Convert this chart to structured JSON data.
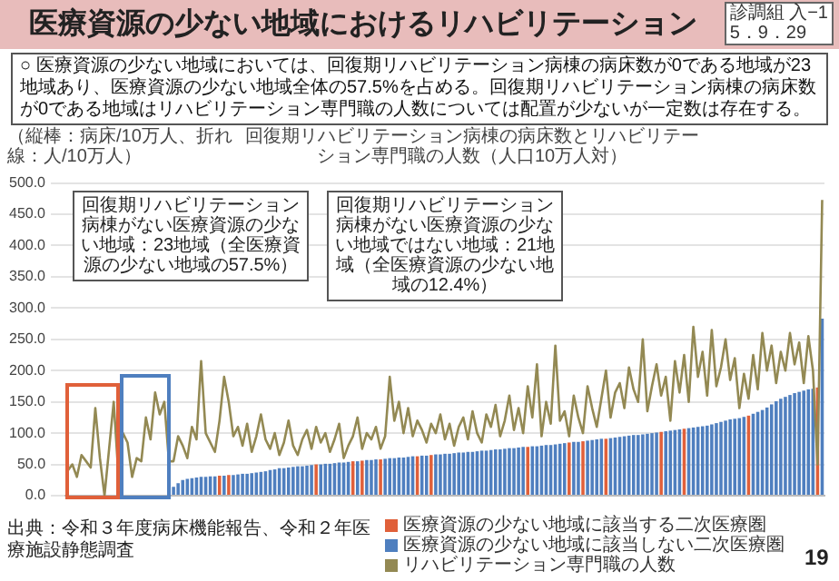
{
  "chart_data": {
    "type": "bar",
    "title": "医療資源の少ない地域におけるリハビリテーション",
    "subtitle": "○ 医療資源の少ない地域においては、回復期リハビリテーション病棟の病床数が0である地域が23地域あり、医療資源の少ない地域全体の57.5%を占める。回復期リハビリテーション病棟の病床数が0である地域はリハビリテーション専門職の人数については配置が少ないが一定数は存在する。",
    "annotations": [
      "診調組 入−1\n5．9．29",
      "（縦棒：病床/10万人、折れ線：人/10万人）",
      "回復期リハビリテーション病棟の病床数とリハビリテーション専門職の人数（人口10万人対）",
      "回復期リハビリテーション病棟がない医療資源の少ない地域：23地域（全医療資源の少ない地域の57.5%）",
      "回復期リハビリテーション病棟がない医療資源の少ない地域ではない地域：21地域（全医療資源の少ない地域の12.4%）",
      "出典：令和３年度病床機能報告、令和２年医療施設静態調査",
      "19"
    ],
    "categories": [
      null,
      null,
      null,
      null,
      null,
      null,
      null,
      null,
      null,
      null,
      null,
      null,
      null,
      null,
      null,
      null,
      null,
      null,
      null,
      null,
      null,
      null,
      null,
      null,
      null,
      null,
      null,
      null,
      null,
      null,
      null,
      null,
      null,
      null,
      null,
      null,
      null,
      null,
      null,
      null,
      null,
      null,
      null,
      null,
      null,
      null,
      null,
      null,
      null,
      null,
      null,
      null,
      null,
      null,
      null,
      null,
      null,
      null,
      null,
      null,
      null,
      null,
      null,
      null,
      null,
      null,
      null,
      null,
      null,
      null,
      null,
      null,
      null,
      null,
      null,
      null,
      null,
      null,
      null,
      null,
      null,
      null,
      null,
      null,
      null,
      null,
      null,
      null,
      null,
      null,
      null,
      null,
      null,
      null,
      null,
      null,
      null,
      null,
      null,
      null,
      null,
      null,
      null,
      null,
      null,
      null,
      null,
      null,
      null,
      null,
      null,
      null,
      null,
      null,
      null,
      null,
      null,
      null,
      null,
      null,
      null,
      null,
      null,
      null,
      null,
      null,
      null,
      null,
      null,
      null,
      null,
      null,
      null,
      null,
      null,
      null,
      null,
      null,
      null,
      null,
      null,
      null,
      null,
      null,
      null,
      null,
      null,
      null,
      null,
      null,
      null,
      null,
      null,
      null,
      null,
      null,
      null,
      null,
      null,
      null,
      null,
      null,
      null,
      null,
      null
    ],
    "series": [
      {
        "name": "医療資源の少ない地域に該当する二次医療圏",
        "color": "#e0603a",
        "values": [
          0,
          0,
          0,
          0,
          0,
          0,
          0,
          0,
          0,
          0,
          0,
          0,
          null,
          null,
          null,
          null,
          null,
          null,
          null,
          null,
          null,
          null,
          null,
          null,
          null,
          null,
          null,
          null,
          null,
          null,
          null,
          null,
          null,
          32,
          null,
          33,
          null,
          null,
          null,
          null,
          null,
          null,
          null,
          null,
          null,
          null,
          null,
          null,
          null,
          null,
          null,
          null,
          null,
          null,
          50,
          null,
          null,
          null,
          null,
          null,
          null,
          null,
          55,
          null,
          56,
          null,
          null,
          null,
          58,
          null,
          null,
          null,
          null,
          null,
          null,
          null,
          63,
          null,
          null,
          65,
          null,
          null,
          null,
          null,
          null,
          null,
          null,
          null,
          null,
          null,
          null,
          null,
          null,
          null,
          null,
          null,
          null,
          null,
          null,
          null,
          78,
          null,
          null,
          null,
          null,
          null,
          null,
          null,
          null,
          85,
          null,
          null,
          87,
          null,
          null,
          null,
          null,
          91,
          null,
          null,
          null,
          null,
          null,
          null,
          null,
          null,
          null,
          null,
          null,
          102,
          null,
          null,
          null,
          null,
          107,
          null,
          null,
          null,
          null,
          null,
          null,
          null,
          null,
          null,
          null,
          null,
          null,
          null,
          128,
          null,
          null,
          null,
          null,
          null,
          null,
          null,
          null,
          null,
          null,
          null,
          null,
          null,
          null,
          173,
          null
        ]
      },
      {
        "name": "医療資源の少ない地域に該当しない二次医療圏",
        "color": "#4f7fbf",
        "values": [
          null,
          null,
          null,
          null,
          null,
          null,
          null,
          null,
          null,
          null,
          null,
          null,
          0,
          0,
          0,
          0,
          0,
          0,
          0,
          0,
          0,
          0,
          0,
          14,
          20,
          25,
          27,
          28,
          29,
          30,
          30,
          31,
          31,
          null,
          32,
          null,
          33,
          34,
          35,
          35,
          36,
          37,
          38,
          39,
          41,
          42,
          44,
          44,
          45,
          46,
          47,
          47,
          48,
          49,
          null,
          50,
          51,
          51,
          52,
          53,
          53,
          54,
          null,
          55,
          null,
          57,
          57,
          58,
          null,
          59,
          60,
          60,
          61,
          61,
          62,
          63,
          null,
          64,
          64,
          null,
          66,
          66,
          67,
          67,
          68,
          69,
          69,
          70,
          70,
          71,
          72,
          72,
          73,
          74,
          74,
          75,
          76,
          76,
          77,
          78,
          null,
          79,
          79,
          80,
          81,
          81,
          82,
          83,
          84,
          null,
          86,
          86,
          null,
          88,
          89,
          90,
          91,
          null,
          92,
          93,
          94,
          95,
          96,
          97,
          97,
          98,
          99,
          100,
          101,
          null,
          103,
          104,
          105,
          106,
          null,
          108,
          109,
          110,
          111,
          112,
          114,
          116,
          118,
          120,
          122,
          123,
          124,
          126,
          null,
          131,
          134,
          137,
          141,
          146,
          151,
          155,
          158,
          161,
          164,
          166,
          168,
          170,
          171,
          null,
          283
        ]
      },
      {
        "name": "リハビリテーション専門職の人数",
        "type": "line",
        "color": "#938953",
        "values": [
          40,
          50,
          30,
          65,
          55,
          45,
          140,
          60,
          0,
          75,
          150,
          35,
          100,
          85,
          30,
          60,
          55,
          125,
          90,
          165,
          130,
          150,
          55,
          55,
          95,
          80,
          60,
          110,
          90,
          215,
          100,
          85,
          70,
          120,
          190,
          150,
          95,
          110,
          80,
          115,
          70,
          95,
          130,
          90,
          75,
          100,
          65,
          85,
          120,
          80,
          65,
          90,
          105,
          75,
          110,
          85,
          100,
          70,
          90,
          115,
          60,
          80,
          95,
          125,
          75,
          100,
          90,
          110,
          75,
          95,
          190,
          120,
          150,
          100,
          140,
          95,
          120,
          105,
          85,
          115,
          100,
          130,
          90,
          115,
          80,
          110,
          125,
          90,
          135,
          100,
          85,
          130,
          110,
          145,
          95,
          120,
          160,
          105,
          140,
          100,
          175,
          125,
          210,
          95,
          150,
          115,
          240,
          120,
          135,
          95,
          160,
          125,
          100,
          175,
          140,
          110,
          155,
          200,
          125,
          165,
          180,
          140,
          205,
          170,
          150,
          250,
          135,
          175,
          210,
          160,
          190,
          120,
          215,
          165,
          225,
          150,
          270,
          190,
          230,
          160,
          265,
          175,
          205,
          250,
          185,
          220,
          140,
          195,
          155,
          225,
          170,
          260,
          200,
          240,
          180,
          230,
          200,
          260,
          210,
          245,
          180,
          255,
          200,
          50,
          473
        ]
      }
    ],
    "ylim": [
      0,
      500
    ],
    "yticks": [
      {
        "value": 0,
        "label": "0.0"
      },
      {
        "value": 50,
        "label": "50.0"
      },
      {
        "value": 100,
        "label": "100.0"
      },
      {
        "value": 150,
        "label": "150.0"
      },
      {
        "value": 200,
        "label": "200.0"
      },
      {
        "value": 250,
        "label": "250.0"
      },
      {
        "value": 300,
        "label": "300.0"
      },
      {
        "value": 350,
        "label": "350.0"
      },
      {
        "value": 400,
        "label": "400.0"
      },
      {
        "value": 450,
        "label": "450.0"
      },
      {
        "value": 500,
        "label": "500.0"
      }
    ],
    "grid": "y",
    "legend": "bottom right",
    "tick_labels": "y",
    "marker": "none",
    "line_style": "solid"
  }
}
